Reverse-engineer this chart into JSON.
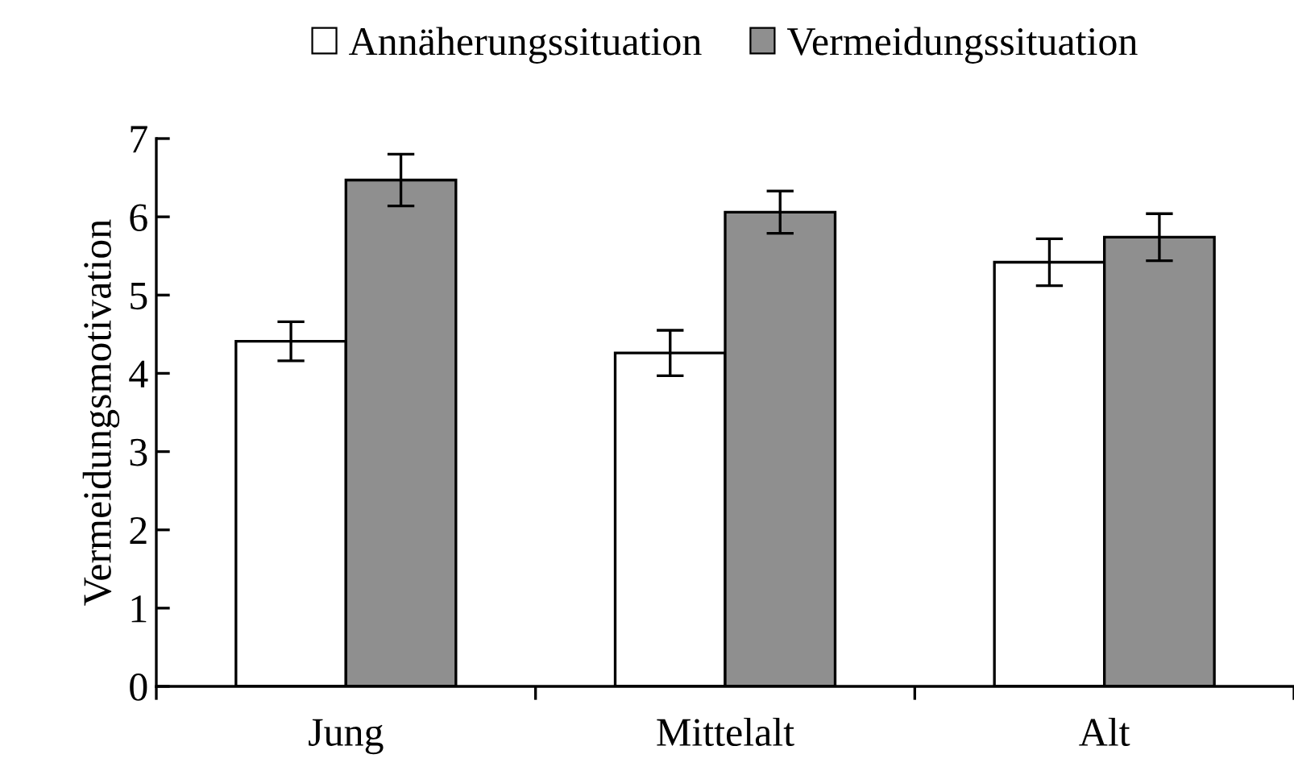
{
  "chart_data": {
    "type": "bar",
    "ylabel": "Vermeidungsmotivation",
    "categories": [
      "Jung",
      "Mittelalt",
      "Alt"
    ],
    "series": [
      {
        "name": "Annäherungssituation",
        "color": "#ffffff",
        "values": [
          4.41,
          4.26,
          5.42
        ],
        "errors": [
          0.25,
          0.29,
          0.3
        ]
      },
      {
        "name": "Vermeidungssituation",
        "color": "#8f8f8f",
        "values": [
          6.47,
          6.06,
          5.74
        ],
        "errors": [
          0.33,
          0.27,
          0.3
        ]
      }
    ],
    "ylim": [
      0,
      7
    ],
    "yticks": [
      0,
      1,
      2,
      3,
      4,
      5,
      6,
      7
    ],
    "grid": false,
    "legend": "top"
  }
}
